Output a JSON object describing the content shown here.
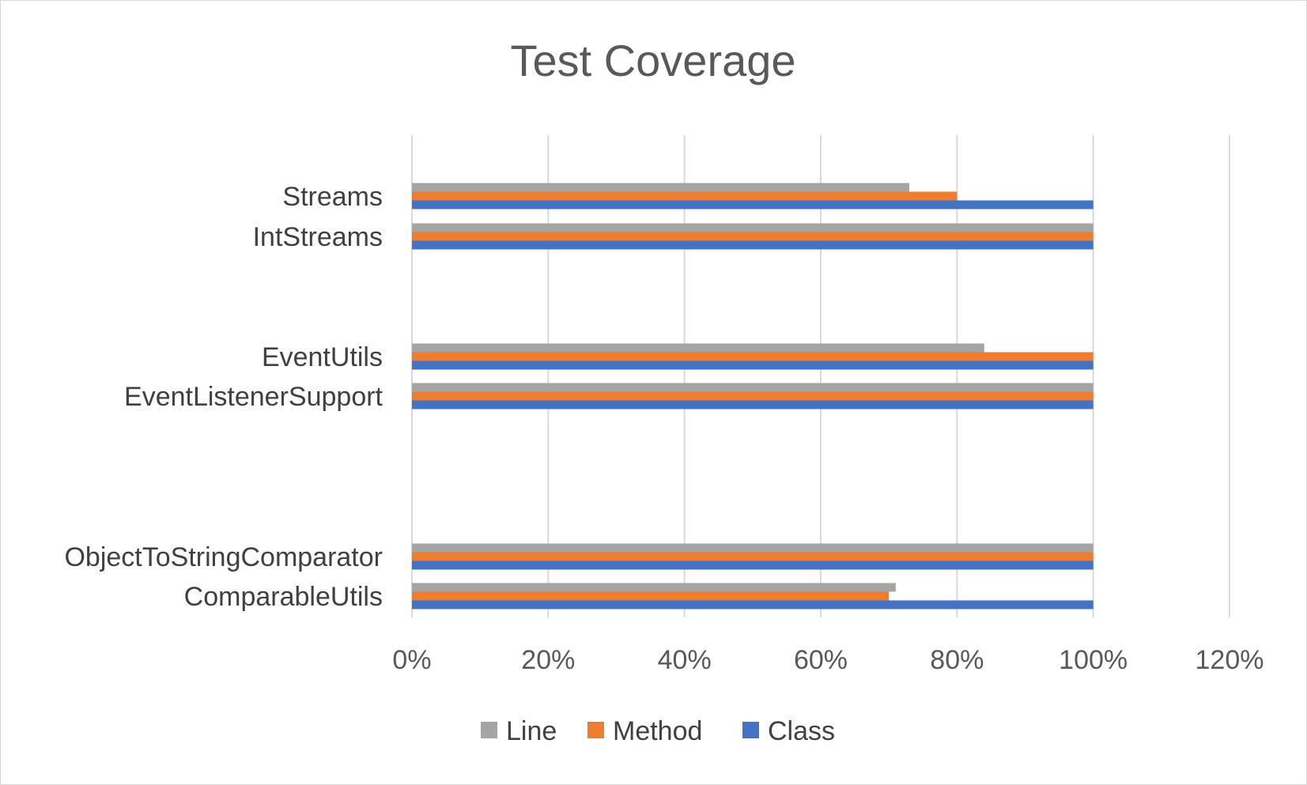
{
  "chart_data": {
    "type": "bar",
    "orientation": "horizontal",
    "title": "Test Coverage",
    "categories": [
      "Streams",
      "IntStreams",
      "EventUtils",
      "EventListenerSupport",
      "ObjectToStringComparator",
      "ComparableUtils"
    ],
    "series": [
      {
        "name": "Line",
        "color": "#A5A5A5",
        "values": [
          0.73,
          1.0,
          0.84,
          1.0,
          1.0,
          0.71
        ]
      },
      {
        "name": "Method",
        "color": "#ED7D31",
        "values": [
          0.8,
          1.0,
          1.0,
          1.0,
          1.0,
          0.7
        ]
      },
      {
        "name": "Class",
        "color": "#4472C4",
        "values": [
          1.0,
          1.0,
          1.0,
          1.0,
          1.0,
          1.0
        ]
      }
    ],
    "xlim": [
      0,
      1.2
    ],
    "xticks": [
      "0%",
      "20%",
      "40%",
      "60%",
      "80%",
      "100%",
      "120%"
    ],
    "grid": true,
    "legend_position": "bottom"
  }
}
